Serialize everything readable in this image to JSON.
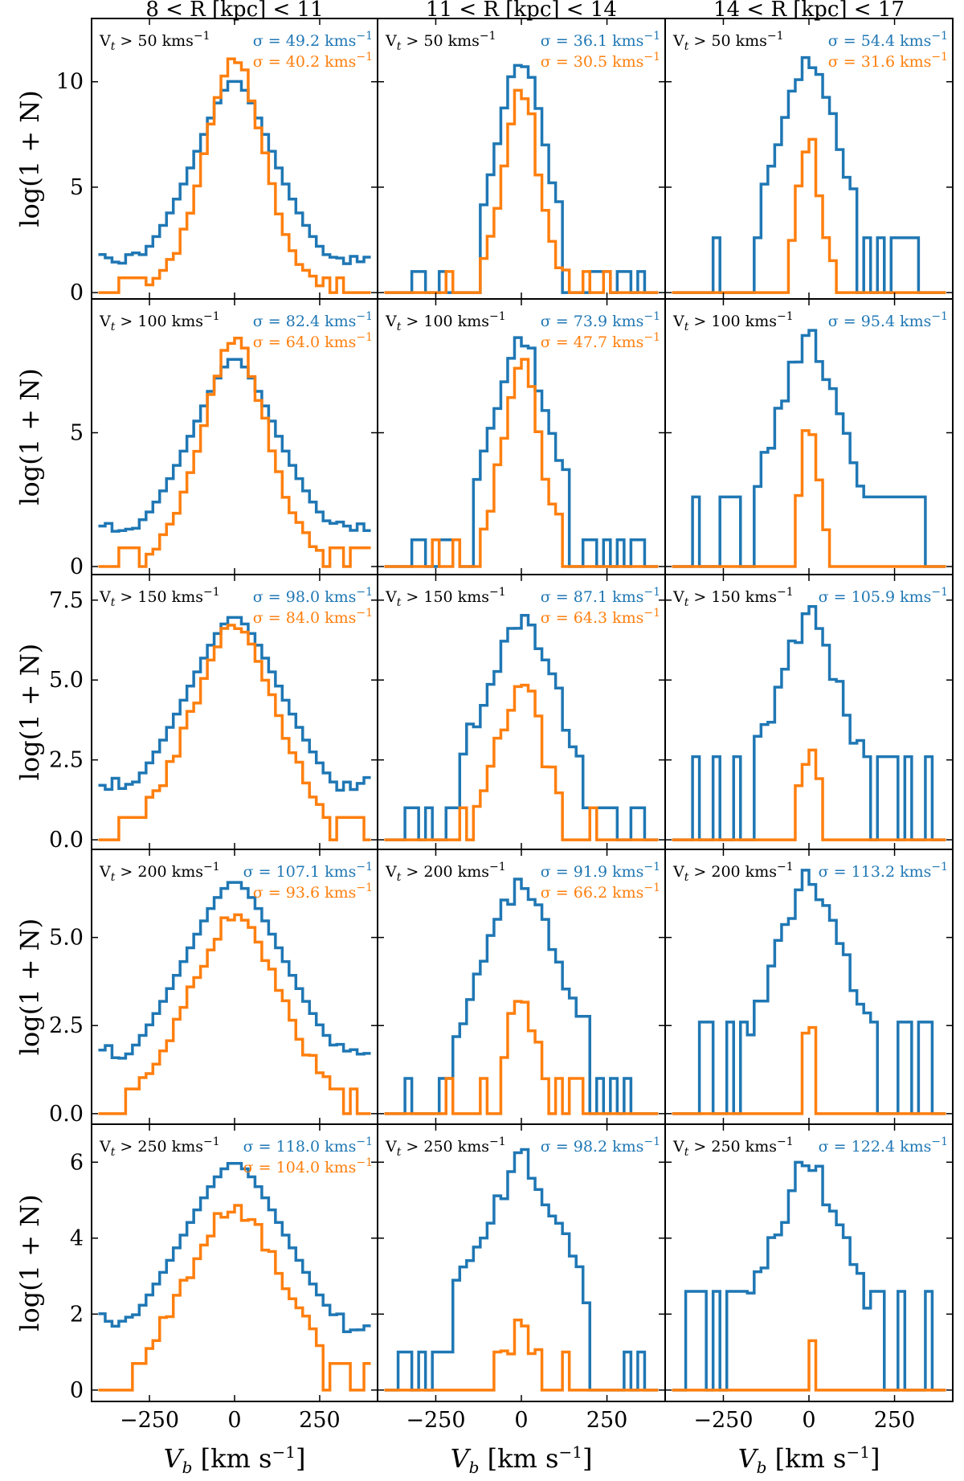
{
  "chart_data": {
    "type": "histogram-grid",
    "colors": {
      "all": "#1f77b4",
      "sub": "#ff7f0e"
    },
    "columns": [
      "8 < R [kpc] < 11",
      "11 < R [kpc] < 14",
      "14 < R [kpc] < 17"
    ],
    "xlabel": "V_b [km s^-1]",
    "ylabel": "log(1 + N)",
    "xlim": [
      -420,
      420
    ],
    "xticks": [
      -250,
      0,
      250
    ],
    "xticklabels": [
      "−250",
      "0",
      "250"
    ],
    "rows": [
      {
        "cut": "V_t > 50 km s^-1",
        "ylim": [
          -0.3,
          13.0
        ],
        "yticks": [
          0,
          5,
          10
        ],
        "yticklabels": [
          "0",
          "5",
          "10"
        ],
        "panels": [
          {
            "sigma_all": "σ = 49.2 km s^-1",
            "sigma_sub": "σ = 40.2 km s^-1"
          },
          {
            "sigma_all": "σ = 36.1 km s^-1",
            "sigma_sub": "σ = 30.5 km s^-1"
          },
          {
            "sigma_all": "σ = 54.4 km s^-1",
            "sigma_sub": "σ = 31.6 km s^-1"
          }
        ]
      },
      {
        "cut": "V_t > 100 km s^-1",
        "ylim": [
          -0.3,
          10.0
        ],
        "yticks": [
          0,
          5,
          10
        ],
        "yticklabels": [
          "0",
          "5",
          "10"
        ],
        "panels": [
          {
            "sigma_all": "σ = 82.4 km s^-1",
            "sigma_sub": "σ = 64.0 km s^-1"
          },
          {
            "sigma_all": "σ = 73.9 km s^-1",
            "sigma_sub": "σ = 47.7 km s^-1"
          },
          {
            "sigma_all": "σ = 95.4 km s^-1",
            "sigma_sub": ""
          }
        ]
      },
      {
        "cut": "V_t > 150 km s^-1",
        "ylim": [
          -0.3,
          8.3
        ],
        "yticks": [
          0.0,
          2.5,
          5.0,
          7.5
        ],
        "yticklabels": [
          "0.0",
          "2.5",
          "5.0",
          "7.5"
        ],
        "panels": [
          {
            "sigma_all": "σ = 98.0 km s^-1",
            "sigma_sub": "σ = 84.0 km s^-1"
          },
          {
            "sigma_all": "σ = 87.1 km s^-1",
            "sigma_sub": "σ = 64.3 km s^-1"
          },
          {
            "sigma_all": "σ = 105.9 km s^-1",
            "sigma_sub": ""
          }
        ]
      },
      {
        "cut": "V_t > 200 km s^-1",
        "ylim": [
          -0.3,
          7.5
        ],
        "yticks": [
          0.0,
          2.5,
          5.0,
          7.5
        ],
        "yticklabels": [
          "0.0",
          "2.5",
          "5.0",
          "7.5"
        ],
        "panels": [
          {
            "sigma_all": "σ = 107.1 km s^-1",
            "sigma_sub": "σ = 93.6 km s^-1"
          },
          {
            "sigma_all": "σ = 91.9 km s^-1",
            "sigma_sub": "σ = 66.2 km s^-1"
          },
          {
            "sigma_all": "σ = 113.2 km s^-1",
            "sigma_sub": ""
          }
        ]
      },
      {
        "cut": "V_t > 250 km s^-1",
        "ylim": [
          -0.3,
          7.0
        ],
        "yticks": [
          0,
          2,
          4,
          6
        ],
        "yticklabels": [
          "0",
          "2",
          "4",
          "6"
        ],
        "panels": [
          {
            "sigma_all": "σ = 118.0 km s^-1",
            "sigma_sub": "σ = 104.0 km s^-1"
          },
          {
            "sigma_all": "σ = 98.2 km s^-1",
            "sigma_sub": ""
          },
          {
            "sigma_all": "σ = 122.4 km s^-1",
            "sigma_sub": ""
          }
        ]
      }
    ],
    "series_shape": {
      "xmin": -400,
      "xmax": 400,
      "bin": 20,
      "r0": [
        {
          "all": {
            "peak": 10.1,
            "width": 120,
            "floor": 1.3,
            "fl": 1.2,
            "fr": 1.6
          },
          "sub": {
            "peak": 11.2,
            "width": 90,
            "floor": 0.7,
            "fl": 0.0,
            "fr": 0.7,
            "cut": 330
          }
        },
        {
          "all": {
            "peak": 11.2,
            "width": 70,
            "floor": 0.0,
            "fl": 0.0,
            "fr": 0.0
          },
          "sub": {
            "peak": 9.6,
            "width": 55,
            "floor": 0.0,
            "fl": 0.0,
            "fr": 0.0,
            "cut": 140
          }
        },
        {
          "all": {
            "peak": 11.2,
            "width": 90,
            "floor": 0.0,
            "fl": 0.0,
            "fr": 0.0
          },
          "sub": {
            "peak": 7.4,
            "width": 35,
            "floor": 0.0,
            "fl": 0.0,
            "fr": 0.0,
            "cut": 60
          }
        }
      ]
    }
  }
}
